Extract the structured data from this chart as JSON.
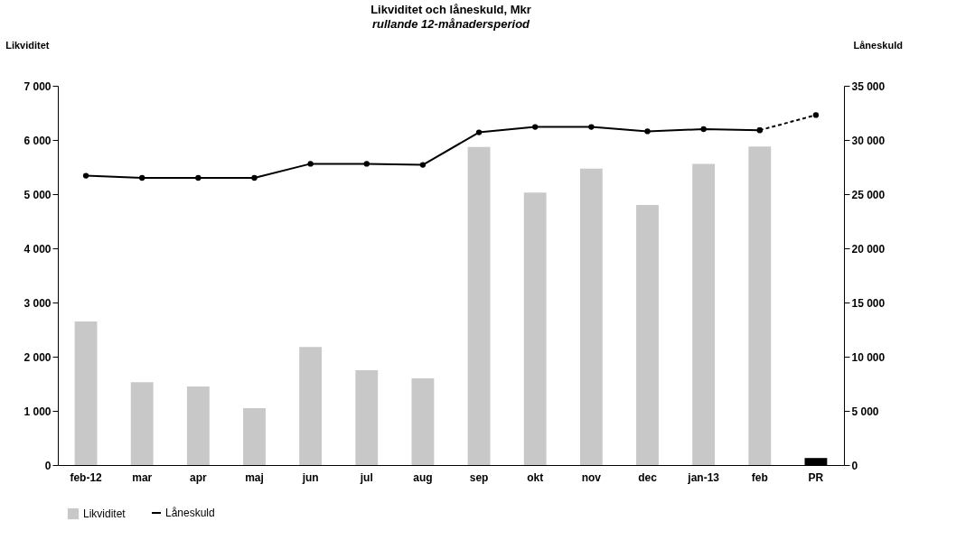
{
  "chart_data": {
    "type": "bar",
    "title": "Likviditet och låneskuld,  Mkr",
    "subtitle": "rullande 12-månadersperiod",
    "ylabel": "Likviditet",
    "y2label": "Låneskuld",
    "categories": [
      "feb-12",
      "mar",
      "apr",
      "maj",
      "jun",
      "jul",
      "aug",
      "sep",
      "okt",
      "nov",
      "dec",
      "jan-13",
      "feb",
      "PR"
    ],
    "series": [
      {
        "name": "Likviditet",
        "color": "#c8c8c8",
        "colors": [
          "#c8c8c8",
          "#c8c8c8",
          "#c8c8c8",
          "#c8c8c8",
          "#c8c8c8",
          "#c8c8c8",
          "#c8c8c8",
          "#c8c8c8",
          "#c8c8c8",
          "#c8c8c8",
          "#c8c8c8",
          "#c8c8c8",
          "#c8c8c8",
          "#000000"
        ],
        "values": [
          2650,
          1530,
          1450,
          1050,
          2180,
          1750,
          1600,
          5870,
          5030,
          5470,
          4800,
          5560,
          5880,
          130
        ]
      },
      {
        "name": "Låneskuld",
        "type": "line",
        "axis": "y2",
        "color": "#000000",
        "marker": "circle",
        "line_style": "solid",
        "values": [
          26700,
          26500,
          26500,
          26500,
          27800,
          27800,
          27700,
          30700,
          31200,
          31200,
          30800,
          31000,
          30900,
          null
        ]
      },
      {
        "type": "line",
        "axis": "y2",
        "color": "#000000",
        "marker": "circle",
        "line_style": "dashed",
        "values": [
          null,
          null,
          null,
          null,
          null,
          null,
          null,
          null,
          null,
          null,
          null,
          null,
          30900,
          32300
        ]
      }
    ],
    "ylim": [
      0,
      7000
    ],
    "yticks": [
      {
        "value": 0,
        "label": "0"
      },
      {
        "value": 1000,
        "label": "1 000"
      },
      {
        "value": 2000,
        "label": "2 000"
      },
      {
        "value": 3000,
        "label": "3 000"
      },
      {
        "value": 4000,
        "label": "4 000"
      },
      {
        "value": 5000,
        "label": "5 000"
      },
      {
        "value": 6000,
        "label": "6 000"
      },
      {
        "value": 7000,
        "label": "7 000"
      }
    ],
    "y2lim": [
      0,
      35000
    ],
    "y2ticks": [
      {
        "value": 0,
        "label": "0"
      },
      {
        "value": 5000,
        "label": "5 000"
      },
      {
        "value": 10000,
        "label": "10 000"
      },
      {
        "value": 15000,
        "label": "15 000"
      },
      {
        "value": 20000,
        "label": "20 000"
      },
      {
        "value": 25000,
        "label": "25 000"
      },
      {
        "value": 30000,
        "label": "30 000"
      },
      {
        "value": 35000,
        "label": "35 000"
      }
    ],
    "grid": false,
    "legend": "bottom"
  }
}
